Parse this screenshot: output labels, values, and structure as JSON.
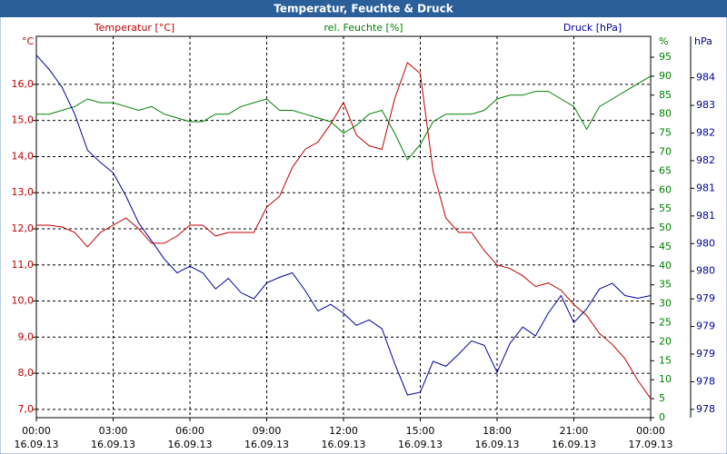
{
  "chart_data": {
    "type": "line",
    "title": "Temperatur, Feuchte & Druck",
    "x": [
      0,
      0.5,
      1,
      1.5,
      2,
      2.5,
      3,
      3.5,
      4,
      4.5,
      5,
      5.5,
      6,
      6.5,
      7,
      7.5,
      8,
      8.5,
      9,
      9.5,
      10,
      10.5,
      11,
      11.5,
      12,
      12.5,
      13,
      13.5,
      14,
      14.5,
      15,
      15.5,
      16,
      16.5,
      17,
      17.5,
      18,
      18.5,
      19,
      19.5,
      20,
      20.5,
      21,
      21.5,
      22,
      22.5,
      23,
      23.5,
      24
    ],
    "xlim": [
      0,
      24
    ],
    "xticks": [
      {
        "value": 0,
        "label": "00:00"
      },
      {
        "value": 3,
        "label": "03:00"
      },
      {
        "value": 6,
        "label": "06:00"
      },
      {
        "value": 9,
        "label": "09:00"
      },
      {
        "value": 12,
        "label": "12:00"
      },
      {
        "value": 15,
        "label": "15:00"
      },
      {
        "value": 18,
        "label": "18:00"
      },
      {
        "value": 21,
        "label": "21:00"
      },
      {
        "value": 24,
        "label": "00:00"
      }
    ],
    "xtick_dates": [
      "16.09.13",
      "16.09.13",
      "16.09.13",
      "16.09.13",
      "16.09.13",
      "16.09.13",
      "16.09.13",
      "16.09.13",
      "17.09.13"
    ],
    "grid": true,
    "ylabel": "°C",
    "ylim": [
      6.77,
      17.33
    ],
    "yticks": [
      {
        "value": 7,
        "label": "7,0"
      },
      {
        "value": 8,
        "label": "8,0"
      },
      {
        "value": 9,
        "label": "9,0"
      },
      {
        "value": 10,
        "label": "10,0"
      },
      {
        "value": 11,
        "label": "11,0"
      },
      {
        "value": 12,
        "label": "12,0"
      },
      {
        "value": 13,
        "label": "13,0"
      },
      {
        "value": 14,
        "label": "14,0"
      },
      {
        "value": 15,
        "label": "15,0"
      },
      {
        "value": 16,
        "label": "16,0"
      }
    ],
    "y2label": "%",
    "y2lim": [
      0,
      100.5
    ],
    "y2ticks": [
      0,
      5,
      10,
      15,
      20,
      25,
      30,
      35,
      40,
      45,
      50,
      55,
      60,
      65,
      70,
      75,
      80,
      85,
      90,
      95
    ],
    "y3label": "hPa",
    "y3lim": [
      977.6,
      984.5
    ],
    "y3ticks": [
      {
        "value": 977.75,
        "label": "978"
      },
      {
        "value": 978.25,
        "label": "978"
      },
      {
        "value": 978.75,
        "label": "979"
      },
      {
        "value": 979.25,
        "label": "979"
      },
      {
        "value": 979.75,
        "label": "979"
      },
      {
        "value": 980.25,
        "label": "980"
      },
      {
        "value": 980.75,
        "label": "980"
      },
      {
        "value": 981.25,
        "label": "981"
      },
      {
        "value": 981.75,
        "label": "981"
      },
      {
        "value": 982.25,
        "label": "982"
      },
      {
        "value": 982.75,
        "label": "982"
      },
      {
        "value": 983.25,
        "label": "983"
      },
      {
        "value": 983.75,
        "label": "984"
      }
    ],
    "series": [
      {
        "name": "Temperatur [°C]",
        "color": "#c00000",
        "axis": "y",
        "values": [
          12.1,
          12.1,
          12.05,
          11.9,
          11.5,
          11.9,
          12.1,
          12.3,
          12.0,
          11.6,
          11.6,
          11.8,
          12.1,
          12.1,
          11.8,
          11.9,
          11.9,
          11.9,
          12.6,
          12.9,
          13.7,
          14.2,
          14.4,
          14.9,
          15.5,
          14.6,
          14.3,
          14.2,
          15.6,
          16.6,
          16.3,
          13.6,
          12.3,
          11.9,
          11.9,
          11.4,
          11.0,
          10.9,
          10.7,
          10.4,
          10.5,
          10.3,
          9.9,
          9.6,
          9.1,
          8.8,
          8.4,
          7.8,
          7.3
        ]
      },
      {
        "name": "rel. Feuchte [%]",
        "color": "#008000",
        "axis": "y2",
        "values": [
          80,
          80,
          81,
          82,
          84,
          83,
          83,
          82,
          81,
          82,
          80,
          79,
          78,
          78,
          80,
          80,
          82,
          83,
          84,
          81,
          81,
          80,
          79,
          78,
          75,
          77,
          80,
          81,
          75,
          68,
          72,
          78,
          80,
          80,
          80,
          81,
          84,
          85,
          85,
          86,
          86,
          84,
          82,
          76,
          82,
          84,
          86,
          88,
          90
        ]
      },
      {
        "name": "Druck [hPa]",
        "color": "#0000a0",
        "axis": "y3",
        "values": [
          984.16,
          983.9,
          983.58,
          983.09,
          982.44,
          982.22,
          982.03,
          981.61,
          981.12,
          980.8,
          980.47,
          980.22,
          980.34,
          980.22,
          979.93,
          980.12,
          979.86,
          979.75,
          980.04,
          980.14,
          980.22,
          979.9,
          979.53,
          979.65,
          979.49,
          979.27,
          979.37,
          979.21,
          978.58,
          978.01,
          978.06,
          978.62,
          978.53,
          978.75,
          978.99,
          978.91,
          978.42,
          978.94,
          979.24,
          979.08,
          979.49,
          979.81,
          979.32,
          979.57,
          979.93,
          980.03,
          979.81,
          979.76,
          979.81
        ]
      }
    ]
  }
}
